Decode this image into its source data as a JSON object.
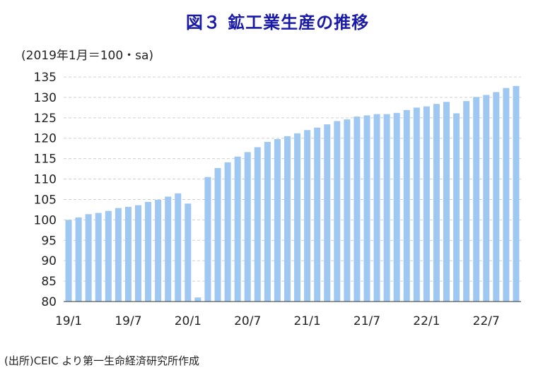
{
  "title": "図３ 鉱工業生産の推移",
  "units_label": "(2019年1月＝100・sa)",
  "source": "(出所)CEIC より第一生命経済研究所作成",
  "colors": {
    "bar": "#9ec8f2",
    "grid": "#d0d0d0",
    "axis": "#333333",
    "title": "#1a1aa8"
  },
  "chart_data": {
    "type": "bar",
    "title": "図３ 鉱工業生産の推移",
    "ylabel": "(2019年1月＝100・sa)",
    "xlabel": "",
    "ylim": [
      80,
      135
    ],
    "yticks": [
      80,
      85,
      90,
      95,
      100,
      105,
      110,
      115,
      120,
      125,
      130,
      135
    ],
    "x_tick_labels": [
      "19/1",
      "19/7",
      "20/1",
      "20/7",
      "21/1",
      "21/7",
      "22/1",
      "22/7"
    ],
    "categories": [
      "19/1",
      "19/2",
      "19/3",
      "19/4",
      "19/5",
      "19/6",
      "19/7",
      "19/8",
      "19/9",
      "19/10",
      "19/11",
      "19/12",
      "20/1",
      "20/2",
      "20/3",
      "20/4",
      "20/5",
      "20/6",
      "20/7",
      "20/8",
      "20/9",
      "20/10",
      "20/11",
      "20/12",
      "21/1",
      "21/2",
      "21/3",
      "21/4",
      "21/5",
      "21/6",
      "21/7",
      "21/8",
      "21/9",
      "21/10",
      "21/11",
      "21/12",
      "22/1",
      "22/2",
      "22/3",
      "22/4",
      "22/5",
      "22/6",
      "22/7",
      "22/8",
      "22/9",
      "22/10"
    ],
    "values": [
      100.0,
      100.6,
      101.4,
      101.7,
      102.2,
      102.9,
      103.2,
      103.6,
      104.4,
      104.9,
      105.7,
      106.5,
      104.0,
      81.0,
      110.5,
      112.7,
      114.1,
      115.5,
      116.6,
      117.8,
      119.1,
      119.8,
      120.5,
      121.2,
      122.0,
      122.6,
      123.4,
      124.2,
      124.6,
      125.3,
      125.6,
      125.9,
      125.9,
      126.2,
      126.9,
      127.5,
      127.8,
      128.4,
      128.9,
      126.1,
      129.1,
      130.1,
      130.6,
      131.3,
      132.3,
      132.8
    ]
  }
}
